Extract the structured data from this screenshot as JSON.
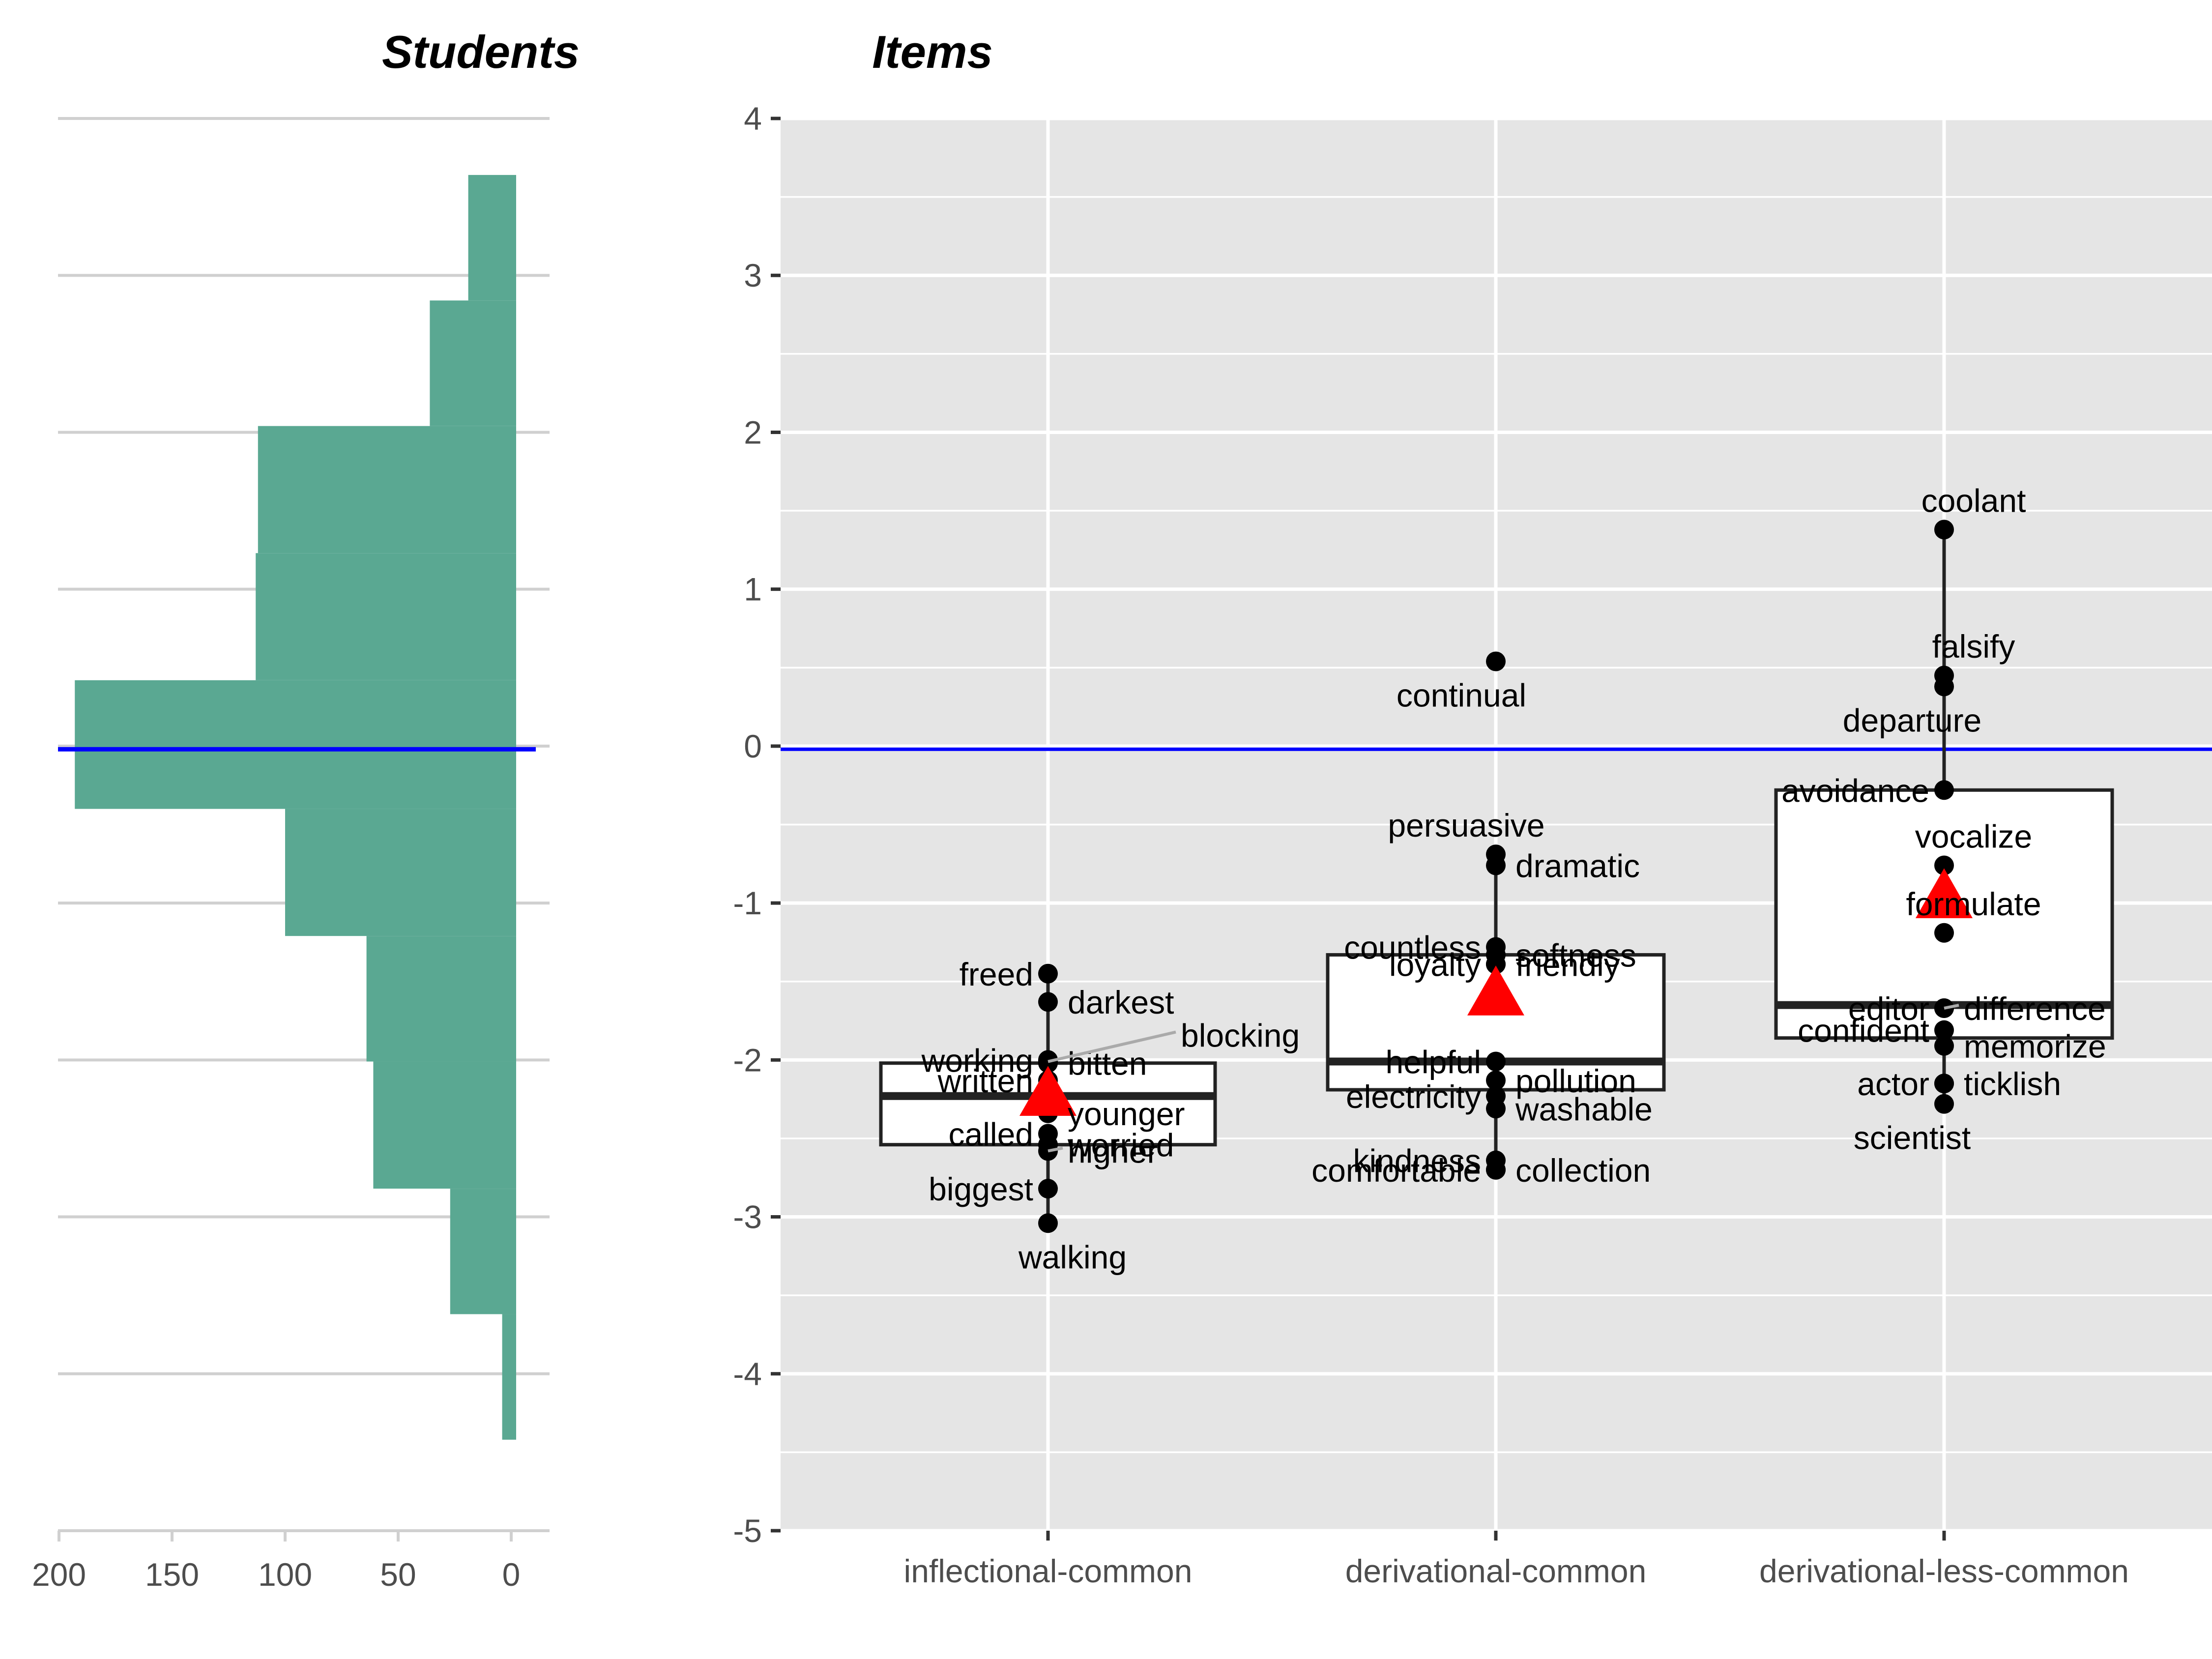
{
  "chart_data": [
    {
      "type": "bar",
      "orientation": "horizontal",
      "title": "Students",
      "xlabel": "",
      "ylabel": "",
      "x_reversed": true,
      "xlim": [
        200,
        0
      ],
      "x_ticks": [
        "200",
        "150",
        "100",
        "50",
        "0"
      ],
      "x_tick_values": [
        200,
        150,
        100,
        50,
        0
      ],
      "grid": "horizontal",
      "bar_color": "#5aa892",
      "reference_line": {
        "y": -0.02,
        "color": "#0000ff"
      },
      "bins": [
        {
          "from": 2.84,
          "to": 3.64,
          "count": 19
        },
        {
          "from": 2.04,
          "to": 2.84,
          "count": 36
        },
        {
          "from": 1.23,
          "to": 2.04,
          "count": 112
        },
        {
          "from": 0.42,
          "to": 1.23,
          "count": 113
        },
        {
          "from": -0.4,
          "to": 0.42,
          "count": 193
        },
        {
          "from": -1.21,
          "to": -0.4,
          "count": 100
        },
        {
          "from": -2.01,
          "to": -1.21,
          "count": 64
        },
        {
          "from": -2.82,
          "to": -2.01,
          "count": 61
        },
        {
          "from": -3.62,
          "to": -2.82,
          "count": 27
        },
        {
          "from": -4.42,
          "to": -3.62,
          "count": 4
        }
      ]
    },
    {
      "type": "box",
      "title": "Items",
      "xlabel": "",
      "ylabel": "",
      "ylim": [
        -5,
        4
      ],
      "y_ticks": [
        "4",
        "3",
        "2",
        "1",
        "0",
        "-1",
        "-2",
        "-3",
        "-4",
        "-5"
      ],
      "y_tick_values": [
        4,
        3,
        2,
        1,
        0,
        -1,
        -2,
        -3,
        -4,
        -5
      ],
      "grid": true,
      "background": "#e5e5e5",
      "reference_line": {
        "y": -0.02,
        "color": "#0000ff"
      },
      "mean_marker_color": "#ff0000",
      "categories": [
        "inflectional-common",
        "derivational-common",
        "derivational-less-common"
      ],
      "groups": [
        {
          "category": "inflectional-common",
          "box": {
            "lower_whisker": -3.04,
            "q1": -2.54,
            "median": -2.23,
            "q3": -2.02,
            "upper_whisker": -1.45
          },
          "mean": -2.22,
          "outliers": [],
          "points": [
            {
              "label": "freed",
              "value": -1.45,
              "side": "left"
            },
            {
              "label": "darkest",
              "value": -1.63,
              "side": "right"
            },
            {
              "label": "working",
              "value": -2.0,
              "side": "left"
            },
            {
              "label": "bitten",
              "value": -2.02,
              "side": "right"
            },
            {
              "label": "blocking",
              "value": -2.01,
              "side": "far-right",
              "leader": true
            },
            {
              "label": "written",
              "value": -2.13,
              "side": "left"
            },
            {
              "label": "younger",
              "value": -2.34,
              "side": "right"
            },
            {
              "label": "called",
              "value": -2.47,
              "side": "left"
            },
            {
              "label": "worried",
              "value": -2.54,
              "side": "right"
            },
            {
              "label": "higher",
              "value": -2.58,
              "side": "right",
              "leader": true
            },
            {
              "label": "biggest",
              "value": -2.82,
              "side": "left"
            },
            {
              "label": "walking",
              "value": -3.04,
              "side": "below"
            }
          ]
        },
        {
          "category": "derivational-common",
          "box": {
            "lower_whisker": -2.7,
            "q1": -2.19,
            "median": -2.01,
            "q3": -1.33,
            "upper_whisker": -0.69
          },
          "mean": -1.58,
          "outliers": [
            0.54
          ],
          "points": [
            {
              "label": "continual",
              "value": 0.54,
              "side": "below"
            },
            {
              "label": "persuasive",
              "value": -0.69,
              "side": "above"
            },
            {
              "label": "dramatic",
              "value": -0.76,
              "side": "right"
            },
            {
              "label": "countless",
              "value": -1.28,
              "side": "left"
            },
            {
              "label": "softness",
              "value": -1.33,
              "side": "right"
            },
            {
              "label": "loyalty",
              "value": -1.39,
              "side": "left"
            },
            {
              "label": "friendly",
              "value": -1.39,
              "side": "right"
            },
            {
              "label": "helpful",
              "value": -2.01,
              "side": "left"
            },
            {
              "label": "pollution",
              "value": -2.13,
              "side": "right"
            },
            {
              "label": "electricity",
              "value": -2.23,
              "side": "left"
            },
            {
              "label": "washable",
              "value": -2.31,
              "side": "right"
            },
            {
              "label": "kindness",
              "value": -2.64,
              "side": "left"
            },
            {
              "label": "comfortable",
              "value": -2.7,
              "side": "left"
            },
            {
              "label": "collection",
              "value": -2.7,
              "side": "right"
            }
          ]
        },
        {
          "category": "derivational-less-common",
          "box": {
            "lower_whisker": -2.28,
            "q1": -1.86,
            "median": -1.65,
            "q3": -0.28,
            "upper_whisker": 1.38
          },
          "mean": -0.96,
          "outliers": [],
          "points": [
            {
              "label": "coolant",
              "value": 1.38,
              "side": "above"
            },
            {
              "label": "falsify",
              "value": 0.45,
              "side": "above"
            },
            {
              "label": "departure",
              "value": 0.38,
              "side": "below"
            },
            {
              "label": "avoidance",
              "value": -0.28,
              "side": "left"
            },
            {
              "label": "vocalize",
              "value": -0.76,
              "side": "above"
            },
            {
              "label": "formulate",
              "value": -1.19,
              "side": "above"
            },
            {
              "label": "editor",
              "value": -1.67,
              "side": "left"
            },
            {
              "label": "difference",
              "value": -1.67,
              "side": "right",
              "leader": true
            },
            {
              "label": "confident",
              "value": -1.81,
              "side": "left"
            },
            {
              "label": "memorize",
              "value": -1.91,
              "side": "right"
            },
            {
              "label": "actor",
              "value": -2.15,
              "side": "left"
            },
            {
              "label": "ticklish",
              "value": -2.15,
              "side": "right"
            },
            {
              "label": "scientist",
              "value": -2.28,
              "side": "below"
            }
          ]
        }
      ]
    }
  ]
}
